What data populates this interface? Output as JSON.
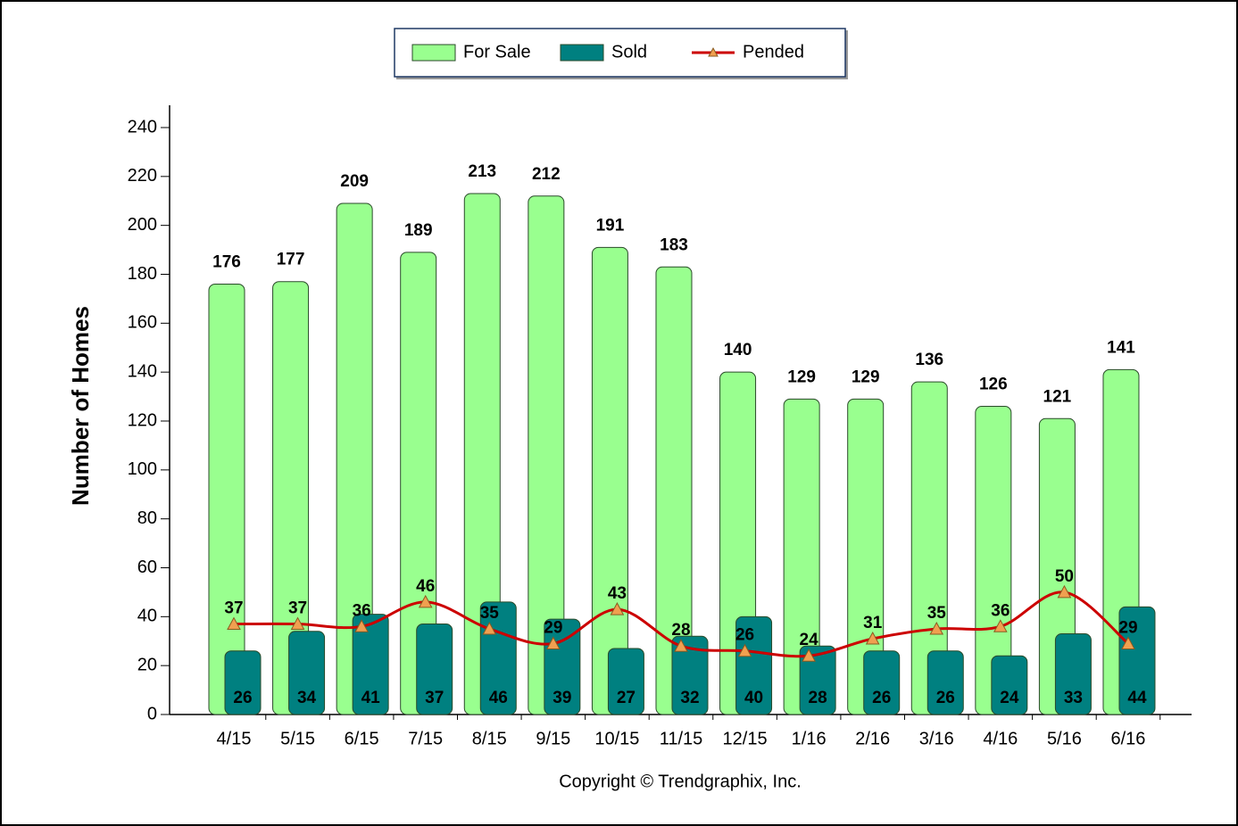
{
  "chart_data": {
    "type": "bar",
    "y_label": "Number of Homes",
    "source": "Copyright © Trendgraphix, Inc.",
    "categories": [
      "4/15",
      "5/15",
      "6/15",
      "7/15",
      "8/15",
      "9/15",
      "10/15",
      "11/15",
      "12/15",
      "1/16",
      "2/16",
      "3/16",
      "4/16",
      "5/16",
      "6/16"
    ],
    "series": [
      {
        "name": "For Sale",
        "type": "bar",
        "color": "#99ff8f",
        "values": [
          176,
          177,
          209,
          189,
          213,
          212,
          191,
          183,
          140,
          129,
          129,
          136,
          126,
          121,
          141
        ]
      },
      {
        "name": "Sold",
        "type": "bar",
        "color": "#008080",
        "values": [
          26,
          34,
          41,
          37,
          46,
          39,
          27,
          32,
          40,
          28,
          26,
          26,
          24,
          33,
          44
        ]
      },
      {
        "name": "Pended",
        "type": "line",
        "color": "#cc0000",
        "marker_color": "#f0a050",
        "values": [
          37,
          37,
          36,
          46,
          35,
          29,
          43,
          28,
          26,
          24,
          31,
          35,
          36,
          50,
          29
        ]
      }
    ],
    "ylim": [
      0,
      240
    ],
    "yticks": [
      0,
      20,
      40,
      60,
      80,
      100,
      120,
      140,
      160,
      180,
      200,
      220,
      240
    ]
  }
}
